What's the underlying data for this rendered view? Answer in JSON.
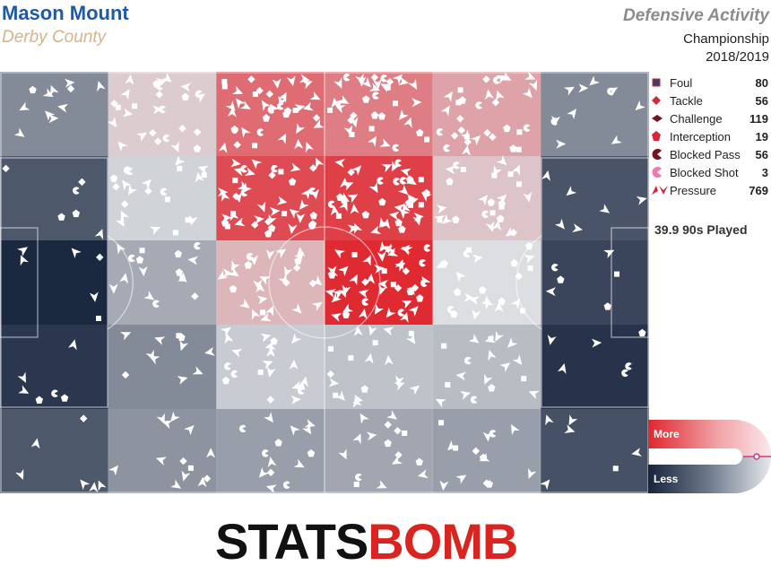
{
  "player": "Mason Mount",
  "team": "Derby County",
  "chart_title": "Defensive Activity",
  "competition": "Championship",
  "season": "2018/2019",
  "played": "39.9 90s Played",
  "scale": {
    "more": "More",
    "less": "Less"
  },
  "logo": {
    "part1": "STATS",
    "part2": "BOMB"
  },
  "colors": {
    "more": "#e0262e",
    "less": "#16243d",
    "legend_dark": "#7a1020",
    "legend_red": "#d32a3a",
    "legend_pink": "#f07ab0",
    "accent": "#e0347a"
  },
  "chart_data": {
    "type": "heatmap",
    "grid_cols": 6,
    "grid_rows": 5,
    "intensity_scale": "-1 = Less (navy), 0 = neutral (light grey), 1 = More (red)",
    "cells": [
      [
        -0.45,
        0.1,
        0.62,
        0.52,
        0.32,
        -0.45
      ],
      [
        -0.72,
        -0.06,
        0.8,
        0.86,
        0.14,
        -0.74
      ],
      [
        -0.98,
        -0.28,
        0.22,
        0.98,
        0.0,
        -0.82
      ],
      [
        -0.9,
        -0.45,
        -0.1,
        -0.15,
        -0.18,
        -0.92
      ],
      [
        -0.72,
        -0.4,
        -0.34,
        -0.3,
        -0.34,
        -0.76
      ]
    ],
    "events": [
      {
        "name": "Foul",
        "count": "80",
        "icon": "square"
      },
      {
        "name": "Tackle",
        "count": "56",
        "icon": "diamond"
      },
      {
        "name": "Challenge",
        "count": "119",
        "icon": "diamond-dark"
      },
      {
        "name": "Interception",
        "count": "19",
        "icon": "pentagon"
      },
      {
        "name": "Blocked Pass",
        "count": "56",
        "icon": "pacman-dark"
      },
      {
        "name": "Blocked Shot",
        "count": "3",
        "icon": "pacman-pink"
      },
      {
        "name": "Pressure",
        "count": "769",
        "icon": "chevron"
      }
    ]
  }
}
